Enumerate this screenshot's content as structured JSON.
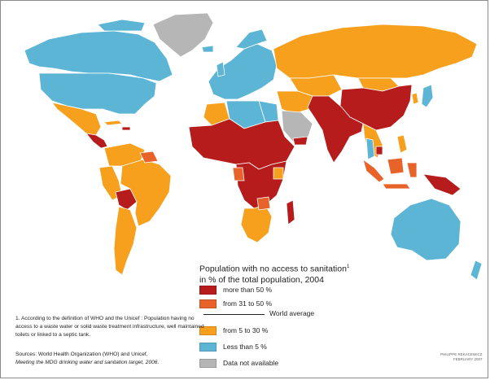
{
  "legend": {
    "title_line1": "Population with no access to sanitation",
    "title_sup": "1",
    "title_line2": "in % of the total population, 2004",
    "items": [
      {
        "label": "more than 50 %",
        "color": "#b71c1c"
      },
      {
        "label": "from 31 to 50 %",
        "color": "#e8632a"
      },
      {
        "label": "from 5 to 30 %",
        "color": "#f6a01e"
      },
      {
        "label": "Less than 5 %",
        "color": "#5db5d6"
      },
      {
        "label": "Data not available",
        "color": "#b6b6b6"
      }
    ],
    "world_average_label": "World average"
  },
  "footnote": {
    "text": "1. According to the definition of WHO and the Unicef : Population having no access to a waste water or solid waste treatment infrastructure, well maintained toilets or linked to a septic tank."
  },
  "sources": {
    "line1": "Sources: World Health Organization (WHO) and Unicef,",
    "line2": "Meeting the MDG drinking water and sanitation target, 2006."
  },
  "credit": {
    "line1": "PHILIPPE REKACEWICZ",
    "line2": "FEBRUARY 2007"
  },
  "colors": {
    "more_than_50": "#b71c1c",
    "from_31_to_50": "#e8632a",
    "from_5_to_30": "#f6a01e",
    "less_than_5": "#5db5d6",
    "not_available": "#b6b6b6",
    "border": "#ffffff"
  }
}
